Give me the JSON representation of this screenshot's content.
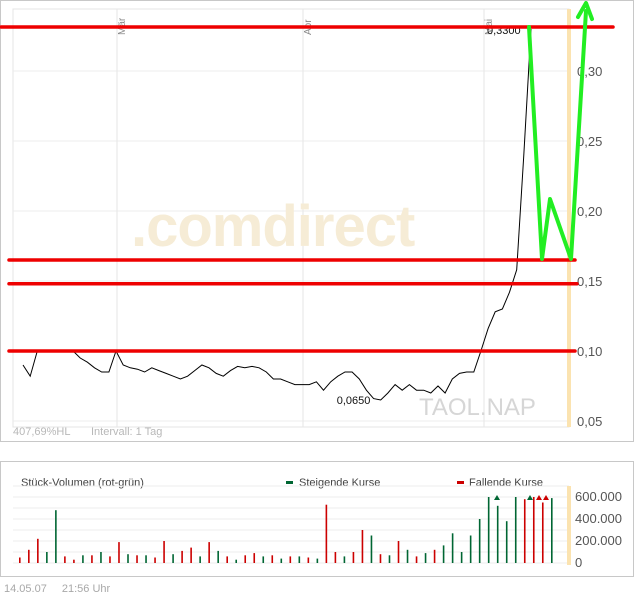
{
  "price_chart": {
    "watermark": ".comdirect",
    "ticker": "TAOL.NAP",
    "info_left": "407,69%HL",
    "info_interval": "Intervall: 1 Tag",
    "months": [
      "Mär",
      "Apr",
      "Mai"
    ],
    "y_ticks": [
      "0,30",
      "0,25",
      "0,20",
      "0,15",
      "0,10",
      "0,05"
    ],
    "low_label": "0,0650",
    "high_label": "0,3300"
  },
  "volume_chart": {
    "title": "Stück-Volumen (rot-grün)",
    "legend_up": "Steigende Kurse",
    "legend_down": "Fallende Kurse",
    "y_ticks": [
      "600.000",
      "400.000",
      "200.000",
      "0"
    ],
    "up_color": "#006633",
    "down_color": "#cc0000"
  },
  "footer": {
    "date": "14.05.07",
    "time": "21:56 Uhr"
  },
  "chart_data": [
    {
      "type": "line",
      "x_categories": [
        "Mär",
        "Apr",
        "Mai"
      ],
      "ylim": [
        0.05,
        0.33
      ],
      "series_values": [
        0.09,
        0.082,
        0.1,
        0.1,
        0.1,
        0.1,
        0.1,
        0.1,
        0.095,
        0.092,
        0.088,
        0.085,
        0.085,
        0.1,
        0.09,
        0.088,
        0.087,
        0.085,
        0.088,
        0.086,
        0.084,
        0.082,
        0.08,
        0.082,
        0.086,
        0.09,
        0.088,
        0.084,
        0.082,
        0.086,
        0.089,
        0.088,
        0.089,
        0.088,
        0.085,
        0.08,
        0.08,
        0.078,
        0.076,
        0.076,
        0.076,
        0.078,
        0.072,
        0.078,
        0.082,
        0.085,
        0.085,
        0.08,
        0.072,
        0.066,
        0.065,
        0.07,
        0.076,
        0.072,
        0.076,
        0.072,
        0.072,
        0.07,
        0.075,
        0.07,
        0.08,
        0.084,
        0.085,
        0.085,
        0.1,
        0.116,
        0.128,
        0.13,
        0.142,
        0.158,
        0.24,
        0.33
      ],
      "annotations": [
        {
          "text": "0,0650",
          "value": 0.065
        },
        {
          "text": "0,3300",
          "value": 0.33
        }
      ],
      "horizontal_lines": [
        0.33,
        0.165,
        0.148,
        0.1
      ],
      "line_color": "#000000",
      "annotation_line_color": "#ee0000",
      "arrow_color": "#22ee22"
    },
    {
      "type": "bar",
      "ylim": [
        0,
        700000
      ],
      "y_ticks": [
        600000,
        400000,
        200000,
        0
      ],
      "bars": [
        {
          "v": 50000,
          "d": "down"
        },
        {
          "v": 120000,
          "d": "down"
        },
        {
          "v": 220000,
          "d": "down"
        },
        {
          "v": 100000,
          "d": "up"
        },
        {
          "v": 480000,
          "d": "up"
        },
        {
          "v": 60000,
          "d": "down"
        },
        {
          "v": 30000,
          "d": "down"
        },
        {
          "v": 70000,
          "d": "up"
        },
        {
          "v": 70000,
          "d": "down"
        },
        {
          "v": 100000,
          "d": "up"
        },
        {
          "v": 60000,
          "d": "down"
        },
        {
          "v": 190000,
          "d": "down"
        },
        {
          "v": 80000,
          "d": "up"
        },
        {
          "v": 70000,
          "d": "down"
        },
        {
          "v": 70000,
          "d": "up"
        },
        {
          "v": 50000,
          "d": "down"
        },
        {
          "v": 200000,
          "d": "down"
        },
        {
          "v": 80000,
          "d": "up"
        },
        {
          "v": 110000,
          "d": "down"
        },
        {
          "v": 140000,
          "d": "down"
        },
        {
          "v": 60000,
          "d": "up"
        },
        {
          "v": 190000,
          "d": "down"
        },
        {
          "v": 110000,
          "d": "up"
        },
        {
          "v": 60000,
          "d": "down"
        },
        {
          "v": 30000,
          "d": "up"
        },
        {
          "v": 70000,
          "d": "down"
        },
        {
          "v": 90000,
          "d": "down"
        },
        {
          "v": 60000,
          "d": "up"
        },
        {
          "v": 70000,
          "d": "down"
        },
        {
          "v": 40000,
          "d": "up"
        },
        {
          "v": 60000,
          "d": "down"
        },
        {
          "v": 60000,
          "d": "up"
        },
        {
          "v": 50000,
          "d": "down"
        },
        {
          "v": 40000,
          "d": "up"
        },
        {
          "v": 530000,
          "d": "down"
        },
        {
          "v": 100000,
          "d": "down"
        },
        {
          "v": 60000,
          "d": "up"
        },
        {
          "v": 100000,
          "d": "down"
        },
        {
          "v": 300000,
          "d": "down"
        },
        {
          "v": 250000,
          "d": "up"
        },
        {
          "v": 80000,
          "d": "down"
        },
        {
          "v": 70000,
          "d": "up"
        },
        {
          "v": 200000,
          "d": "down"
        },
        {
          "v": 120000,
          "d": "up"
        },
        {
          "v": 60000,
          "d": "down"
        },
        {
          "v": 90000,
          "d": "up"
        },
        {
          "v": 120000,
          "d": "down"
        },
        {
          "v": 160000,
          "d": "up"
        },
        {
          "v": 270000,
          "d": "up"
        },
        {
          "v": 100000,
          "d": "up"
        },
        {
          "v": 250000,
          "d": "up"
        },
        {
          "v": 400000,
          "d": "up"
        },
        {
          "v": 600000,
          "d": "up"
        },
        {
          "v": 520000,
          "d": "up"
        },
        {
          "v": 380000,
          "d": "up"
        },
        {
          "v": 600000,
          "d": "up"
        },
        {
          "v": 580000,
          "d": "down"
        },
        {
          "v": 600000,
          "d": "down"
        },
        {
          "v": 550000,
          "d": "down"
        },
        {
          "v": 590000,
          "d": "up"
        }
      ]
    }
  ]
}
